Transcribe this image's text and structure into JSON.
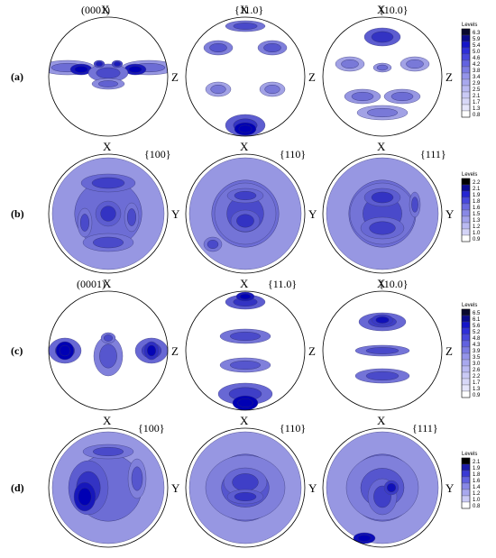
{
  "rows": [
    {
      "label": "(a)",
      "axes": {
        "top": "X",
        "right": "Z"
      },
      "poles": [
        "(0001)",
        "{11.0}",
        "{10.0}"
      ],
      "legend": {
        "title": "Levels",
        "values": [
          "6.3",
          "5.9",
          "5.4",
          "5.0",
          "4.6",
          "4.2",
          "3.8",
          "3.4",
          "2.9",
          "2.5",
          "2.1",
          "1.7",
          "1.3",
          "0.8"
        ],
        "colors": [
          "#08082e",
          "#0a0a8a",
          "#1515c8",
          "#2f2fd8",
          "#4848dc",
          "#6262e0",
          "#7c7ce4",
          "#9494ea",
          "#a8a8ee",
          "#babaf2",
          "#cacaf5",
          "#d8d8f8",
          "#e6e6fb",
          "#ffffff"
        ]
      }
    },
    {
      "label": "(b)",
      "axes": {
        "top": "X",
        "right": "Y"
      },
      "poles": [
        "{100}",
        "{110}",
        "{111}"
      ],
      "legend": {
        "title": "Levels",
        "values": [
          "2.2",
          "2.1",
          "1.9",
          "1.8",
          "1.6",
          "1.5",
          "1.3",
          "1.2",
          "1.0",
          "0.9"
        ],
        "colors": [
          "#000000",
          "#0a0a90",
          "#2626d2",
          "#4848dc",
          "#6a6ae0",
          "#8888e6",
          "#a2a2ec",
          "#babaf2",
          "#d4d4f7",
          "#ffffff"
        ]
      }
    },
    {
      "label": "(c)",
      "axes": {
        "top": "X",
        "right": "Z"
      },
      "poles": [
        "(0001)",
        "{11.0}",
        "{10.0}"
      ],
      "legend": {
        "title": "Levels",
        "values": [
          "6.5",
          "6.1",
          "5.6",
          "5.2",
          "4.8",
          "4.3",
          "3.9",
          "3.5",
          "3.0",
          "2.6",
          "2.2",
          "1.7",
          "1.3",
          "0.9"
        ],
        "colors": [
          "#08082e",
          "#0a0a8a",
          "#1515c8",
          "#2f2fd8",
          "#4848dc",
          "#6262e0",
          "#7c7ce4",
          "#9494ea",
          "#a8a8ee",
          "#babaf2",
          "#cacaf5",
          "#d8d8f8",
          "#e6e6fb",
          "#ffffff"
        ]
      }
    },
    {
      "label": "(d)",
      "axes": {
        "top": "X",
        "right": "Y"
      },
      "poles": [
        "{100}",
        "{110}",
        "{111}"
      ],
      "legend": {
        "title": "Levels",
        "values": [
          "2.1",
          "1.9",
          "1.8",
          "1.6",
          "1.4",
          "1.2",
          "1.0",
          "0.8"
        ],
        "colors": [
          "#000000",
          "#1a1aa8",
          "#3a3ad4",
          "#6262e0",
          "#8888e6",
          "#a8a8ee",
          "#cacaf5",
          "#ffffff"
        ]
      }
    }
  ]
}
